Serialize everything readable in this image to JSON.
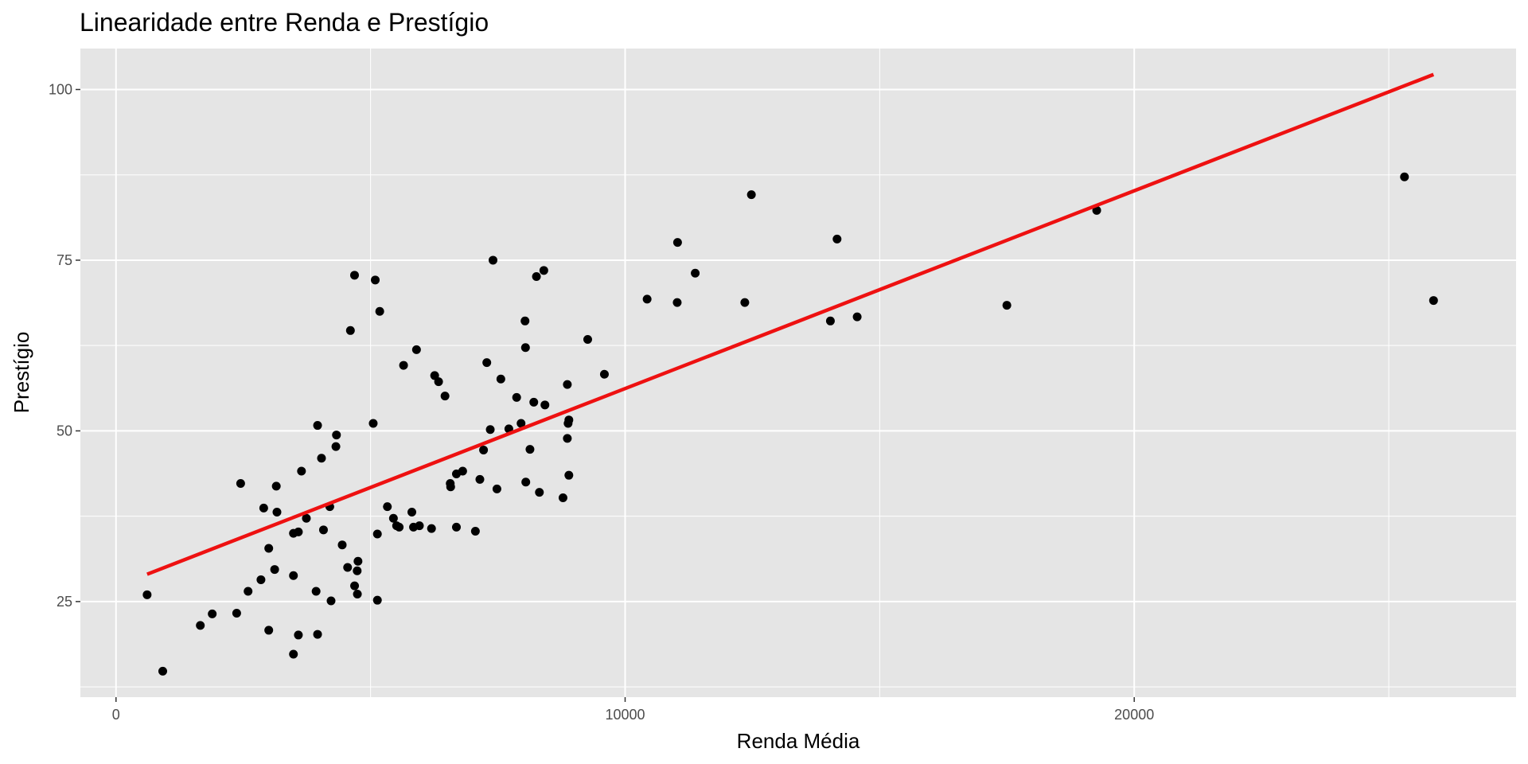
{
  "chart_data": {
    "type": "scatter",
    "title": "Linearidade entre Renda e Prestígio",
    "xlabel": "Renda Média",
    "ylabel": "Prestígio",
    "xlim": [
      -700,
      27500
    ],
    "ylim": [
      11,
      106
    ],
    "x_ticks": [
      0,
      10000,
      20000
    ],
    "x_tick_labels": [
      "0",
      "10000",
      "20000"
    ],
    "y_ticks": [
      25,
      50,
      75,
      100
    ],
    "y_tick_labels": [
      "25",
      "50",
      "75",
      "100"
    ],
    "grid": true,
    "colors": {
      "panel_background": "#e5e5e5",
      "grid": "#ffffff",
      "points": "#000000",
      "fit_line": "#ee1111"
    },
    "fit_line": {
      "x": [
        611,
        25879
      ],
      "y": [
        29.0,
        102.2
      ]
    },
    "points": [
      {
        "x": 611,
        "y": 26.0
      },
      {
        "x": 918,
        "y": 14.8
      },
      {
        "x": 1656,
        "y": 21.5
      },
      {
        "x": 1890,
        "y": 23.2
      },
      {
        "x": 2370,
        "y": 23.3
      },
      {
        "x": 2448,
        "y": 42.3
      },
      {
        "x": 2594,
        "y": 26.5
      },
      {
        "x": 2847,
        "y": 28.2
      },
      {
        "x": 2901,
        "y": 38.7
      },
      {
        "x": 3000,
        "y": 32.8
      },
      {
        "x": 3000,
        "y": 20.8
      },
      {
        "x": 3116,
        "y": 29.7
      },
      {
        "x": 3148,
        "y": 41.9
      },
      {
        "x": 3161,
        "y": 38.1
      },
      {
        "x": 3485,
        "y": 17.3
      },
      {
        "x": 3485,
        "y": 28.8
      },
      {
        "x": 3485,
        "y": 35.0
      },
      {
        "x": 3582,
        "y": 20.1
      },
      {
        "x": 3582,
        "y": 35.2
      },
      {
        "x": 3643,
        "y": 44.1
      },
      {
        "x": 3739,
        "y": 37.2
      },
      {
        "x": 3930,
        "y": 26.5
      },
      {
        "x": 3959,
        "y": 20.2
      },
      {
        "x": 3959,
        "y": 50.8
      },
      {
        "x": 4036,
        "y": 46.0
      },
      {
        "x": 4075,
        "y": 35.5
      },
      {
        "x": 4199,
        "y": 38.9
      },
      {
        "x": 4224,
        "y": 25.1
      },
      {
        "x": 4319,
        "y": 47.7
      },
      {
        "x": 4330,
        "y": 49.4
      },
      {
        "x": 4443,
        "y": 33.3
      },
      {
        "x": 4549,
        "y": 30.0
      },
      {
        "x": 4604,
        "y": 64.7
      },
      {
        "x": 4685,
        "y": 72.8
      },
      {
        "x": 4686,
        "y": 27.3
      },
      {
        "x": 4737,
        "y": 29.5
      },
      {
        "x": 4741,
        "y": 26.1
      },
      {
        "x": 4753,
        "y": 30.9
      },
      {
        "x": 5052,
        "y": 51.1
      },
      {
        "x": 5092,
        "y": 72.1
      },
      {
        "x": 5134,
        "y": 34.9
      },
      {
        "x": 5134,
        "y": 25.2
      },
      {
        "x": 5180,
        "y": 67.5
      },
      {
        "x": 5330,
        "y": 38.9
      },
      {
        "x": 5449,
        "y": 37.2
      },
      {
        "x": 5511,
        "y": 36.1
      },
      {
        "x": 5562,
        "y": 35.9
      },
      {
        "x": 5648,
        "y": 59.6
      },
      {
        "x": 5811,
        "y": 38.1
      },
      {
        "x": 5843,
        "y": 35.9
      },
      {
        "x": 5902,
        "y": 61.9
      },
      {
        "x": 5959,
        "y": 36.1
      },
      {
        "x": 6259,
        "y": 58.1
      },
      {
        "x": 6336,
        "y": 57.2
      },
      {
        "x": 6197,
        "y": 35.7
      },
      {
        "x": 6462,
        "y": 55.1
      },
      {
        "x": 6565,
        "y": 42.3
      },
      {
        "x": 6573,
        "y": 41.8
      },
      {
        "x": 6686,
        "y": 43.7
      },
      {
        "x": 6686,
        "y": 35.9
      },
      {
        "x": 6809,
        "y": 44.1
      },
      {
        "x": 7059,
        "y": 35.3
      },
      {
        "x": 7147,
        "y": 42.9
      },
      {
        "x": 7219,
        "y": 47.2
      },
      {
        "x": 7283,
        "y": 60.0
      },
      {
        "x": 7351,
        "y": 50.2
      },
      {
        "x": 7405,
        "y": 75.0
      },
      {
        "x": 7482,
        "y": 41.5
      },
      {
        "x": 7559,
        "y": 57.6
      },
      {
        "x": 7716,
        "y": 50.3
      },
      {
        "x": 7869,
        "y": 54.9
      },
      {
        "x": 7956,
        "y": 51.1
      },
      {
        "x": 8034,
        "y": 66.1
      },
      {
        "x": 8043,
        "y": 62.2
      },
      {
        "x": 8049,
        "y": 42.5
      },
      {
        "x": 8131,
        "y": 47.3
      },
      {
        "x": 8206,
        "y": 54.2
      },
      {
        "x": 8258,
        "y": 72.6
      },
      {
        "x": 8316,
        "y": 41.0
      },
      {
        "x": 8403,
        "y": 73.5
      },
      {
        "x": 8425,
        "y": 53.8
      },
      {
        "x": 8780,
        "y": 40.2
      },
      {
        "x": 8865,
        "y": 48.9
      },
      {
        "x": 8865,
        "y": 56.8
      },
      {
        "x": 8880,
        "y": 51.1
      },
      {
        "x": 8895,
        "y": 51.6
      },
      {
        "x": 8895,
        "y": 43.5
      },
      {
        "x": 9265,
        "y": 63.4
      },
      {
        "x": 9593,
        "y": 58.3
      },
      {
        "x": 10432,
        "y": 69.3
      },
      {
        "x": 11023,
        "y": 68.8
      },
      {
        "x": 11030,
        "y": 77.6
      },
      {
        "x": 11377,
        "y": 73.1
      },
      {
        "x": 12351,
        "y": 68.8
      },
      {
        "x": 12480,
        "y": 84.6
      },
      {
        "x": 14032,
        "y": 66.1
      },
      {
        "x": 14163,
        "y": 78.1
      },
      {
        "x": 14558,
        "y": 66.7
      },
      {
        "x": 17498,
        "y": 68.4
      },
      {
        "x": 19263,
        "y": 82.3
      },
      {
        "x": 25308,
        "y": 87.2
      },
      {
        "x": 25879,
        "y": 69.1
      }
    ]
  }
}
